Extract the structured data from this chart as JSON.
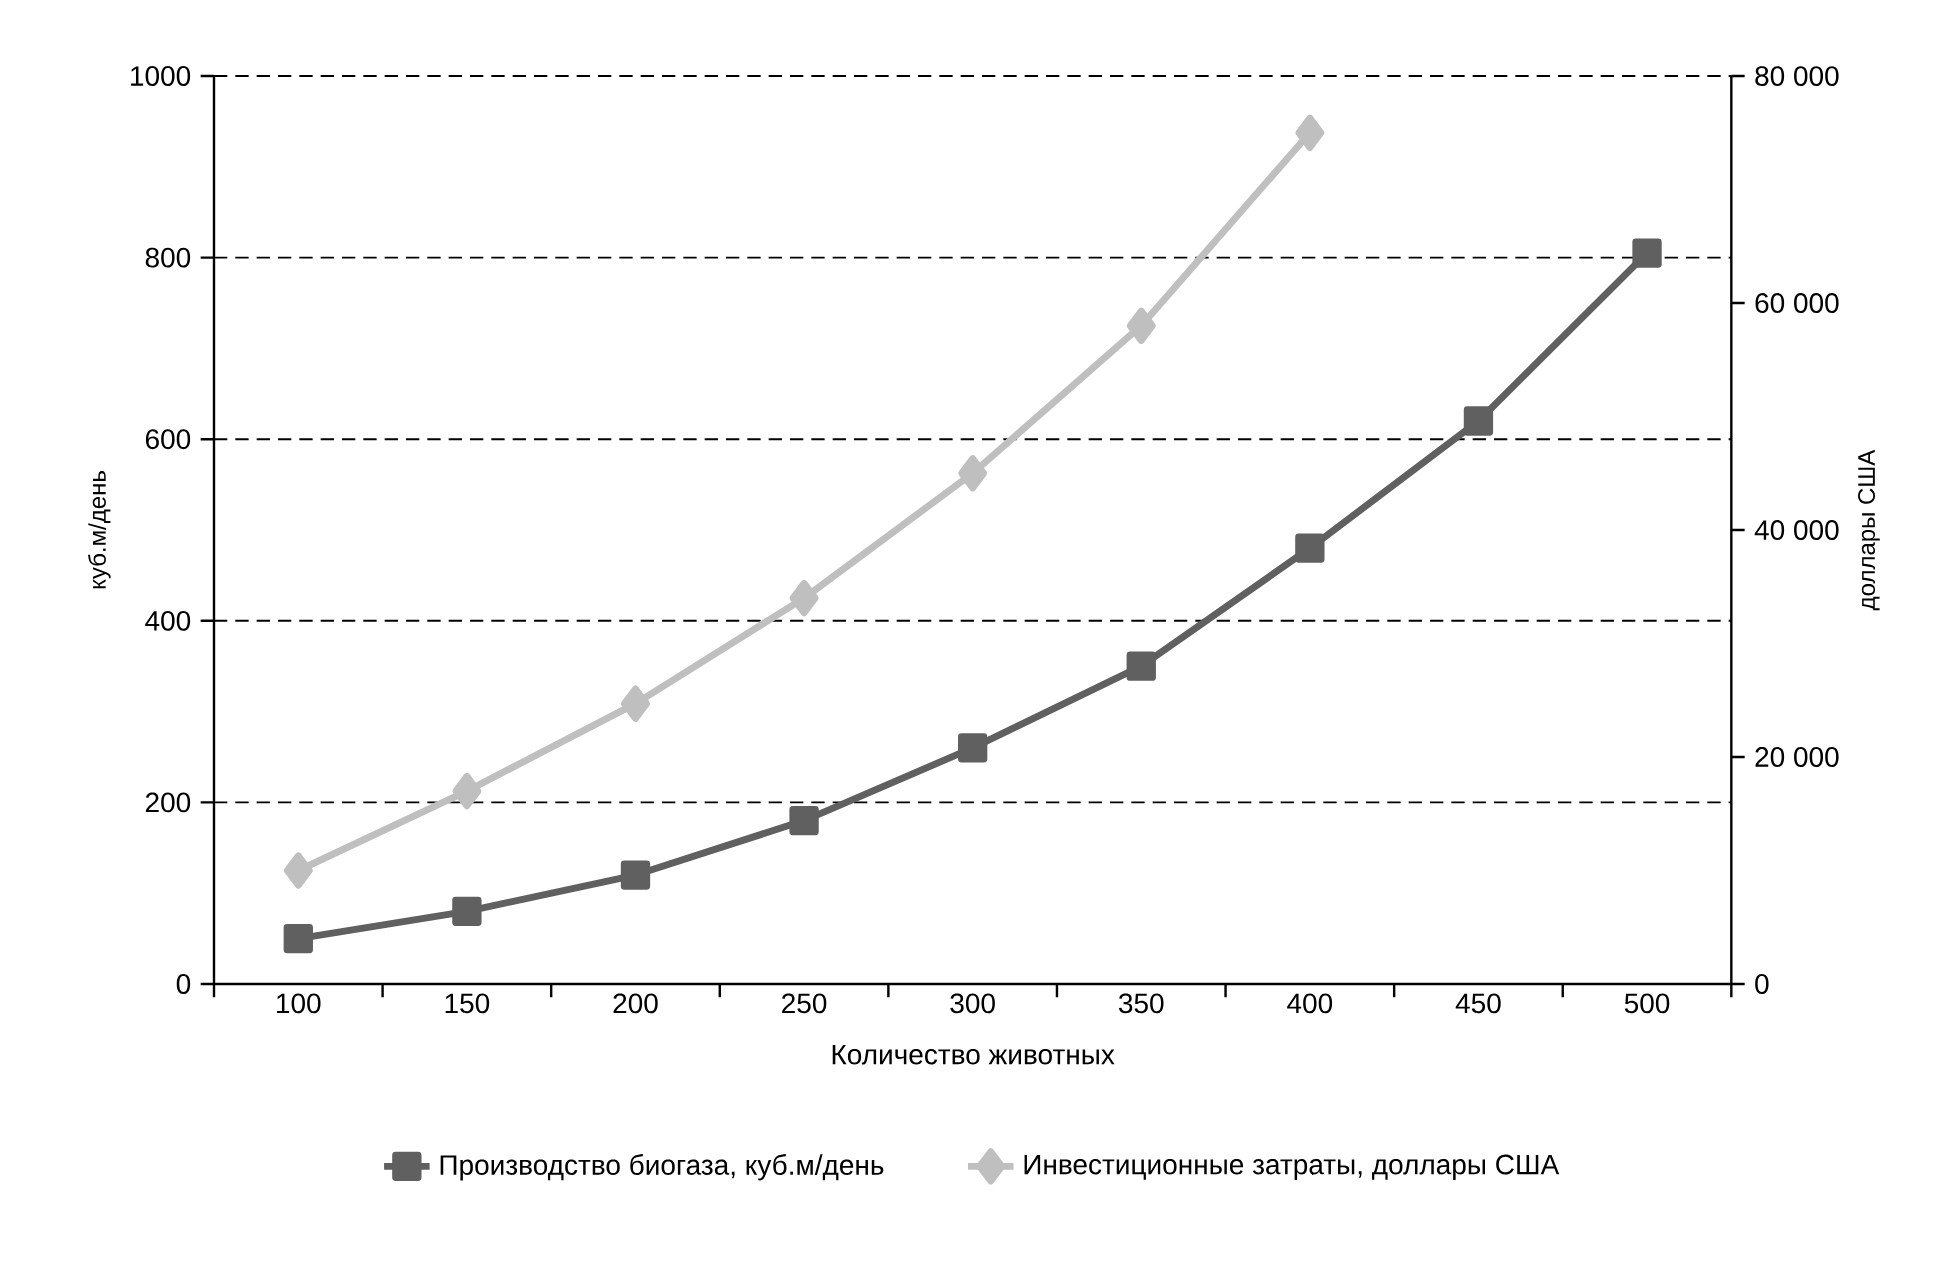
{
  "chart_data": {
    "type": "line",
    "xlabel": "Количество животных",
    "ylabel": "куб.м/день",
    "y2label": "доллары США",
    "categories": [
      "100",
      "150",
      "200",
      "250",
      "300",
      "350",
      "400",
      "450",
      "500"
    ],
    "series": [
      {
        "name": "Производство биогаза, куб.м/день",
        "color": "#606060",
        "marker": "square",
        "values": [
          50,
          80,
          120,
          180,
          260,
          350,
          480,
          620,
          805
        ]
      },
      {
        "name": "Инвестиционные затраты, доллары США",
        "color": "#bfbfbf",
        "marker": "diamond",
        "axis": "y2",
        "values": [
          10000,
          17000,
          24700,
          34000,
          45000,
          58000,
          75000,
          null,
          null
        ]
      }
    ],
    "ylim": [
      0,
      1000
    ],
    "yticks": [
      0,
      200,
      400,
      600,
      800,
      1000
    ],
    "y2lim": [
      0,
      80000
    ],
    "y2ticks": [
      0,
      {
        "value": 20000,
        "label": "20 000"
      },
      {
        "value": 40000,
        "label": "40 000"
      },
      {
        "value": 60000,
        "label": "60 000"
      },
      {
        "value": 80000,
        "label": "80 000"
      }
    ],
    "grid": "y",
    "legend": "bottom",
    "line_style": "solid"
  }
}
